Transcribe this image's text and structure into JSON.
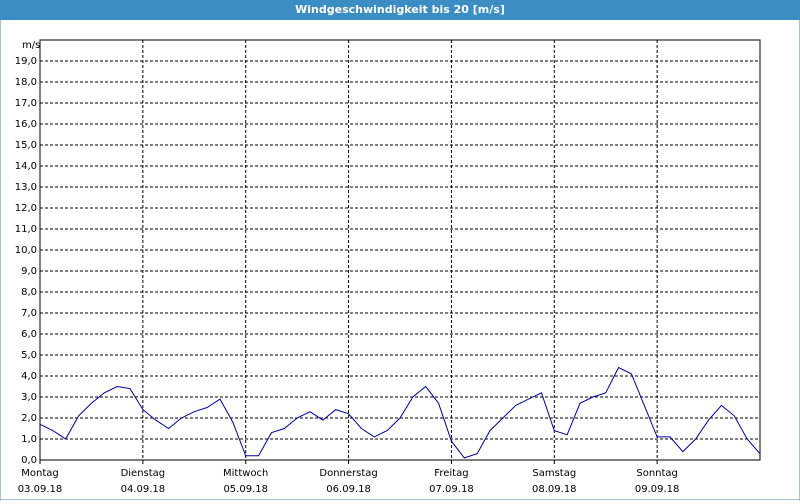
{
  "chart_data": {
    "type": "line",
    "title": "Windgeschwindigkeit bis 20 [m/s]",
    "y_label": "m/s",
    "days": [
      {
        "name": "Montag",
        "date": "03.09.18"
      },
      {
        "name": "Dienstag",
        "date": "04.09.18"
      },
      {
        "name": "Mittwoch",
        "date": "05.09.18"
      },
      {
        "name": "Donnerstag",
        "date": "06.09.18"
      },
      {
        "name": "Freitag",
        "date": "07.09.18"
      },
      {
        "name": "Samstag",
        "date": "08.09.18"
      },
      {
        "name": "Sonntag",
        "date": "09.09.18"
      }
    ],
    "values": [
      1.7,
      1.4,
      1.0,
      2.1,
      2.7,
      3.2,
      3.5,
      3.4,
      2.4,
      1.9,
      1.5,
      2.0,
      2.3,
      2.5,
      2.9,
      1.8,
      0.2,
      0.2,
      1.3,
      1.5,
      2.0,
      2.3,
      1.9,
      2.4,
      2.2,
      1.5,
      1.1,
      1.4,
      2.0,
      3.0,
      3.5,
      2.7,
      0.9,
      0.1,
      0.3,
      1.4,
      2.0,
      2.6,
      2.9,
      3.2,
      1.4,
      1.2,
      2.7,
      3.0,
      3.2,
      4.4,
      4.1,
      2.6,
      1.1,
      1.1,
      0.4,
      1.0,
      1.9,
      2.6,
      2.1,
      1.0,
      0.3
    ],
    "color": "#0000a0",
    "ylim": [
      0,
      20
    ],
    "yticks": [
      {
        "value": 0,
        "label": "0,0"
      },
      {
        "value": 1,
        "label": "1,0"
      },
      {
        "value": 2,
        "label": "2,0"
      },
      {
        "value": 3,
        "label": "3,0"
      },
      {
        "value": 4,
        "label": "4,0"
      },
      {
        "value": 5,
        "label": "5,0"
      },
      {
        "value": 6,
        "label": "6,0"
      },
      {
        "value": 7,
        "label": "7,0"
      },
      {
        "value": 8,
        "label": "8,0"
      },
      {
        "value": 9,
        "label": "9,0"
      },
      {
        "value": 10,
        "label": "10,0"
      },
      {
        "value": 11,
        "label": "11,0"
      },
      {
        "value": 12,
        "label": "12,0"
      },
      {
        "value": 13,
        "label": "13,0"
      },
      {
        "value": 14,
        "label": "14,0"
      },
      {
        "value": 15,
        "label": "15,0"
      },
      {
        "value": 16,
        "label": "16,0"
      },
      {
        "value": 17,
        "label": "17,0"
      },
      {
        "value": 18,
        "label": "18,0"
      },
      {
        "value": 19,
        "label": "19,0"
      }
    ],
    "grid": true
  }
}
